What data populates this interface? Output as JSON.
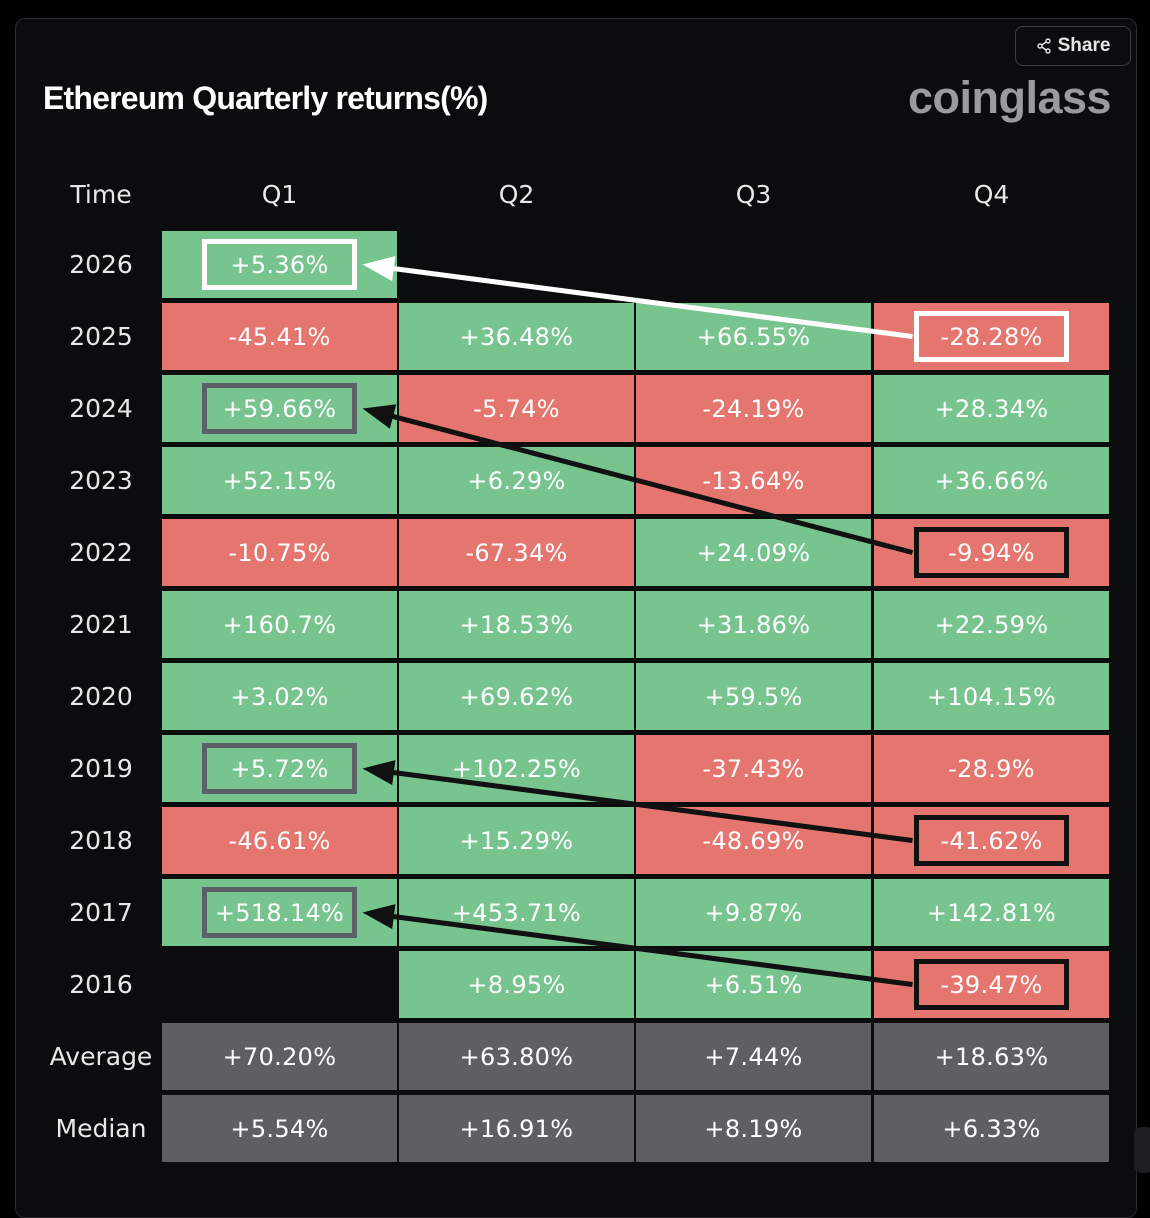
{
  "header": {
    "title": "Ethereum Quarterly returns(%)",
    "brand": "coinglass",
    "share_label": "Share",
    "share_icon": "share-icon"
  },
  "chart_data": {
    "type": "table",
    "title": "Ethereum Quarterly returns(%)",
    "row_header": "Time",
    "columns": [
      "Q1",
      "Q2",
      "Q3",
      "Q4"
    ],
    "rows": [
      {
        "year": "2026",
        "values": [
          "+5.36%",
          null,
          null,
          null
        ]
      },
      {
        "year": "2025",
        "values": [
          "-45.41%",
          "+36.48%",
          "+66.55%",
          "-28.28%"
        ]
      },
      {
        "year": "2024",
        "values": [
          "+59.66%",
          "-5.74%",
          "-24.19%",
          "+28.34%"
        ]
      },
      {
        "year": "2023",
        "values": [
          "+52.15%",
          "+6.29%",
          "-13.64%",
          "+36.66%"
        ]
      },
      {
        "year": "2022",
        "values": [
          "-10.75%",
          "-67.34%",
          "+24.09%",
          "-9.94%"
        ]
      },
      {
        "year": "2021",
        "values": [
          "+160.7%",
          "+18.53%",
          "+31.86%",
          "+22.59%"
        ]
      },
      {
        "year": "2020",
        "values": [
          "+3.02%",
          "+69.62%",
          "+59.5%",
          "+104.15%"
        ]
      },
      {
        "year": "2019",
        "values": [
          "+5.72%",
          "+102.25%",
          "-37.43%",
          "-28.9%"
        ]
      },
      {
        "year": "2018",
        "values": [
          "-46.61%",
          "+15.29%",
          "-48.69%",
          "-41.62%"
        ]
      },
      {
        "year": "2017",
        "values": [
          "+518.14%",
          "+453.71%",
          "+9.87%",
          "+142.81%"
        ]
      },
      {
        "year": "2016",
        "values": [
          null,
          "+8.95%",
          "+6.51%",
          "-39.47%"
        ]
      }
    ],
    "summary_rows": [
      {
        "label": "Average",
        "values": [
          "+70.20%",
          "+63.80%",
          "+7.44%",
          "+18.63%"
        ]
      },
      {
        "label": "Median",
        "values": [
          "+5.54%",
          "+16.91%",
          "+8.19%",
          "+6.33%"
        ]
      }
    ],
    "colors": {
      "positive": "#77c48f",
      "negative": "#e5766f",
      "summary": "#5e5f63"
    },
    "annotations": {
      "highlight_boxes": [
        {
          "year": "2026",
          "quarter": "Q1",
          "color": "#ffffff"
        },
        {
          "year": "2025",
          "quarter": "Q4",
          "color": "#ffffff"
        },
        {
          "year": "2024",
          "quarter": "Q1",
          "color": "#5c5f66"
        },
        {
          "year": "2022",
          "quarter": "Q4",
          "color": "#111111"
        },
        {
          "year": "2019",
          "quarter": "Q1",
          "color": "#5c5f66"
        },
        {
          "year": "2018",
          "quarter": "Q4",
          "color": "#111111"
        },
        {
          "year": "2017",
          "quarter": "Q1",
          "color": "#5c5f66"
        },
        {
          "year": "2016",
          "quarter": "Q4",
          "color": "#111111"
        }
      ],
      "arrows": [
        {
          "from": {
            "year": "2025",
            "quarter": "Q4"
          },
          "to": {
            "year": "2026",
            "quarter": "Q1"
          },
          "color": "#ffffff"
        },
        {
          "from": {
            "year": "2022",
            "quarter": "Q4"
          },
          "to": {
            "year": "2024",
            "quarter": "Q1"
          },
          "color": "#111111"
        },
        {
          "from": {
            "year": "2018",
            "quarter": "Q4"
          },
          "to": {
            "year": "2019",
            "quarter": "Q1"
          },
          "color": "#111111"
        },
        {
          "from": {
            "year": "2016",
            "quarter": "Q4"
          },
          "to": {
            "year": "2017",
            "quarter": "Q1"
          },
          "color": "#111111"
        }
      ]
    }
  }
}
